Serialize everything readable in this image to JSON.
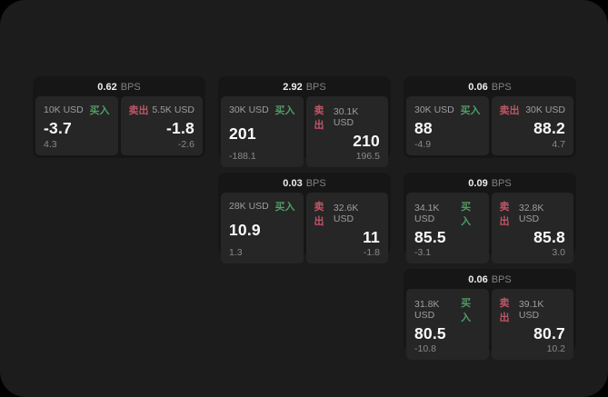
{
  "page": {
    "background": "#000000",
    "surface": "#1c1c1c"
  },
  "labels": {
    "bps_unit": "BPS",
    "buy": "买入",
    "sell": "卖出"
  },
  "colors": {
    "buy_accent": "#4f9d63",
    "sell_accent": "#c05566",
    "card_bg": "#161616",
    "panel_bg": "#262626",
    "text_primary": "#fafafa",
    "text_secondary": "#9e9e9e",
    "text_muted": "#8a8a8a"
  },
  "cards": [
    {
      "bps": "0.62",
      "grid": {
        "row": 1,
        "col": 1
      },
      "buy": {
        "amount": "10K USD",
        "value": "-3.7",
        "sub": "4.3"
      },
      "sell": {
        "amount": "5.5K USD",
        "value": "-1.8",
        "sub": "-2.6"
      }
    },
    {
      "bps": "2.92",
      "grid": {
        "row": 1,
        "col": 2
      },
      "buy": {
        "amount": "30K USD",
        "value": "201",
        "sub": "-188.1"
      },
      "sell": {
        "amount": "30.1K USD",
        "value": "210",
        "sub": "196.5"
      }
    },
    {
      "bps": "0.06",
      "grid": {
        "row": 1,
        "col": 3
      },
      "buy": {
        "amount": "30K USD",
        "value": "88",
        "sub": "-4.9"
      },
      "sell": {
        "amount": "30K USD",
        "value": "88.2",
        "sub": "4.7"
      }
    },
    {
      "bps": "0.03",
      "grid": {
        "row": 2,
        "col": 2
      },
      "buy": {
        "amount": "28K USD",
        "value": "10.9",
        "sub": "1.3"
      },
      "sell": {
        "amount": "32.6K USD",
        "value": "11",
        "sub": "-1.8"
      }
    },
    {
      "bps": "0.09",
      "grid": {
        "row": 2,
        "col": 3
      },
      "buy": {
        "amount": "34.1K USD",
        "value": "85.5",
        "sub": "-3.1"
      },
      "sell": {
        "amount": "32.8K USD",
        "value": "85.8",
        "sub": "3.0"
      }
    },
    {
      "bps": "0.06",
      "grid": {
        "row": 3,
        "col": 3
      },
      "buy": {
        "amount": "31.8K USD",
        "value": "80.5",
        "sub": "-10.8"
      },
      "sell": {
        "amount": "39.1K USD",
        "value": "80.7",
        "sub": "10.2"
      }
    }
  ]
}
